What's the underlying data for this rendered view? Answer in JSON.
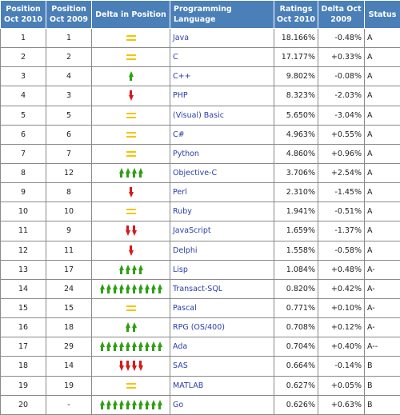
{
  "headers": {
    "pos2010": "Position Oct 2010",
    "pos2009": "Position Oct 2009",
    "delta_pos": "Delta in Position",
    "language": "Programming Language",
    "ratings": "Ratings Oct 2010",
    "delta_rating": "Delta Oct 2009",
    "status": "Status"
  },
  "colors": {
    "header_bg": "#4a7fb8",
    "language_link": "#2a3ea8",
    "up_arrow": "#2ea012",
    "down_arrow": "#d61a1a",
    "unchanged": "#f5c400"
  },
  "rows": [
    {
      "pos2010": "1",
      "pos2009": "1",
      "delta": {
        "dir": "same",
        "count": 1
      },
      "language": "Java",
      "rating": "18.166%",
      "change": "-0.48%",
      "status": "A"
    },
    {
      "pos2010": "2",
      "pos2009": "2",
      "delta": {
        "dir": "same",
        "count": 1
      },
      "language": "C",
      "rating": "17.177%",
      "change": "+0.33%",
      "status": "A"
    },
    {
      "pos2010": "3",
      "pos2009": "4",
      "delta": {
        "dir": "up",
        "count": 1
      },
      "language": "C++",
      "rating": "9.802%",
      "change": "-0.08%",
      "status": "A"
    },
    {
      "pos2010": "4",
      "pos2009": "3",
      "delta": {
        "dir": "down",
        "count": 1
      },
      "language": "PHP",
      "rating": "8.323%",
      "change": "-2.03%",
      "status": "A"
    },
    {
      "pos2010": "5",
      "pos2009": "5",
      "delta": {
        "dir": "same",
        "count": 1
      },
      "language": "(Visual) Basic",
      "rating": "5.650%",
      "change": "-3.04%",
      "status": "A"
    },
    {
      "pos2010": "6",
      "pos2009": "6",
      "delta": {
        "dir": "same",
        "count": 1
      },
      "language": "C#",
      "rating": "4.963%",
      "change": "+0.55%",
      "status": "A"
    },
    {
      "pos2010": "7",
      "pos2009": "7",
      "delta": {
        "dir": "same",
        "count": 1
      },
      "language": "Python",
      "rating": "4.860%",
      "change": "+0.96%",
      "status": "A"
    },
    {
      "pos2010": "8",
      "pos2009": "12",
      "delta": {
        "dir": "up",
        "count": 4
      },
      "language": "Objective-C",
      "rating": "3.706%",
      "change": "+2.54%",
      "status": "A"
    },
    {
      "pos2010": "9",
      "pos2009": "8",
      "delta": {
        "dir": "down",
        "count": 1
      },
      "language": "Perl",
      "rating": "2.310%",
      "change": "-1.45%",
      "status": "A"
    },
    {
      "pos2010": "10",
      "pos2009": "10",
      "delta": {
        "dir": "same",
        "count": 1
      },
      "language": "Ruby",
      "rating": "1.941%",
      "change": "-0.51%",
      "status": "A"
    },
    {
      "pos2010": "11",
      "pos2009": "9",
      "delta": {
        "dir": "down",
        "count": 2
      },
      "language": "JavaScript",
      "rating": "1.659%",
      "change": "-1.37%",
      "status": "A"
    },
    {
      "pos2010": "12",
      "pos2009": "11",
      "delta": {
        "dir": "down",
        "count": 1
      },
      "language": "Delphi",
      "rating": "1.558%",
      "change": "-0.58%",
      "status": "A"
    },
    {
      "pos2010": "13",
      "pos2009": "17",
      "delta": {
        "dir": "up",
        "count": 4
      },
      "language": "Lisp",
      "rating": "1.084%",
      "change": "+0.48%",
      "status": "A-"
    },
    {
      "pos2010": "14",
      "pos2009": "24",
      "delta": {
        "dir": "up",
        "count": 10
      },
      "language": "Transact-SQL",
      "rating": "0.820%",
      "change": "+0.42%",
      "status": "A-"
    },
    {
      "pos2010": "15",
      "pos2009": "15",
      "delta": {
        "dir": "same",
        "count": 1
      },
      "language": "Pascal",
      "rating": "0.771%",
      "change": "+0.10%",
      "status": "A-"
    },
    {
      "pos2010": "16",
      "pos2009": "18",
      "delta": {
        "dir": "up",
        "count": 2
      },
      "language": "RPG (OS/400)",
      "rating": "0.708%",
      "change": "+0.12%",
      "status": "A-"
    },
    {
      "pos2010": "17",
      "pos2009": "29",
      "delta": {
        "dir": "up",
        "count": 10
      },
      "language": "Ada",
      "rating": "0.704%",
      "change": "+0.40%",
      "status": "A--"
    },
    {
      "pos2010": "18",
      "pos2009": "14",
      "delta": {
        "dir": "down",
        "count": 4
      },
      "language": "SAS",
      "rating": "0.664%",
      "change": "-0.14%",
      "status": "B"
    },
    {
      "pos2010": "19",
      "pos2009": "19",
      "delta": {
        "dir": "same",
        "count": 1
      },
      "language": "MATLAB",
      "rating": "0.627%",
      "change": "+0.05%",
      "status": "B"
    },
    {
      "pos2010": "20",
      "pos2009": "-",
      "delta": {
        "dir": "up",
        "count": 10
      },
      "language": "Go",
      "rating": "0.626%",
      "change": "+0.63%",
      "status": "B"
    }
  ]
}
